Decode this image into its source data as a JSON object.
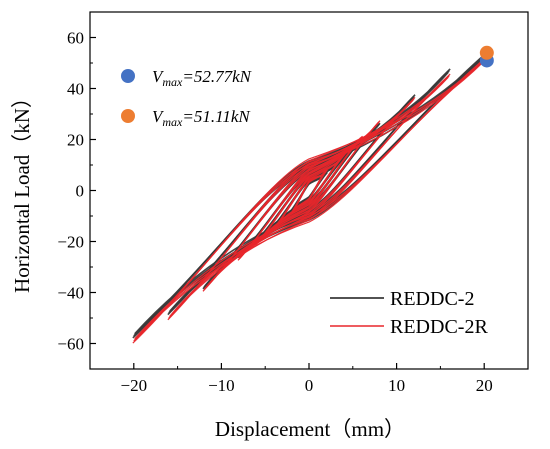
{
  "chart_data": {
    "type": "line",
    "xlabel": "Displacement（mm）",
    "ylabel": "Horizontal Load（kN）",
    "xlim": [
      -25,
      25
    ],
    "ylim": [
      -70,
      70
    ],
    "xticks": [
      -20,
      -10,
      0,
      10,
      20
    ],
    "yticks": [
      -60,
      -40,
      -20,
      0,
      20,
      40,
      60
    ],
    "xtick_labels": [
      "−20",
      "−10",
      "0",
      "10",
      "20"
    ],
    "ytick_labels": [
      "−60",
      "−40",
      "−20",
      "0",
      "20",
      "40",
      "60"
    ],
    "legend_position": "bottom-right",
    "series": [
      {
        "name": "REDDC-2",
        "color": "#3a3a3a",
        "loops": [
          {
            "amp": 2,
            "peak_pos": 7,
            "peak_neg": -8,
            "mid": 4
          },
          {
            "amp": 4,
            "peak_pos": 13,
            "peak_neg": -14,
            "mid": 6
          },
          {
            "amp": 6,
            "peak_pos": 20,
            "peak_neg": -20,
            "mid": 8
          },
          {
            "amp": 8,
            "peak_pos": 26,
            "peak_neg": -26,
            "mid": 10
          },
          {
            "amp": 12,
            "peak_pos": 37,
            "peak_neg": -38,
            "mid": 12
          },
          {
            "amp": 16,
            "peak_pos": 47,
            "peak_neg": -48,
            "mid": 14
          },
          {
            "amp": 20,
            "peak_pos": 52.77,
            "peak_neg": -57,
            "mid": 15
          }
        ]
      },
      {
        "name": "REDDC-2R",
        "color": "#e8262b",
        "loops": [
          {
            "amp": 2,
            "peak_pos": 8,
            "peak_neg": -9,
            "mid": 5
          },
          {
            "amp": 4,
            "peak_pos": 14,
            "peak_neg": -15,
            "mid": 7
          },
          {
            "amp": 6,
            "peak_pos": 21,
            "peak_neg": -21,
            "mid": 9
          },
          {
            "amp": 8,
            "peak_pos": 27,
            "peak_neg": -27,
            "mid": 11
          },
          {
            "amp": 12,
            "peak_pos": 36,
            "peak_neg": -39,
            "mid": 13
          },
          {
            "amp": 16,
            "peak_pos": 45,
            "peak_neg": -50,
            "mid": 15
          },
          {
            "amp": 20,
            "peak_pos": 51.11,
            "peak_neg": -59,
            "mid": 16
          }
        ]
      }
    ],
    "peak_markers": [
      {
        "x": 20.3,
        "y": 51.0,
        "color": "#4472c4"
      },
      {
        "x": 20.3,
        "y": 54.0,
        "color": "#ed7d31"
      }
    ],
    "annotations": [
      {
        "symbol": "V",
        "sub": "max",
        "value_text": "=52.77kN",
        "color": "#4472c4"
      },
      {
        "symbol": "V",
        "sub": "max",
        "value_text": "=51.11kN",
        "color": "#ed7d31"
      }
    ]
  }
}
